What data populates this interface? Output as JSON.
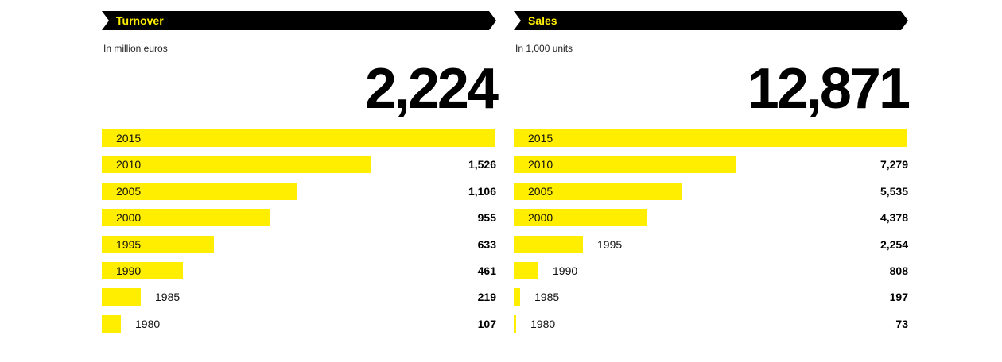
{
  "chart_data": [
    {
      "type": "bar",
      "title": "Turnover",
      "subtitle": "In million euros",
      "total": "2,224",
      "categories": [
        "2015",
        "2010",
        "2005",
        "2000",
        "1995",
        "1990",
        "1985",
        "1980"
      ],
      "values": [
        2224,
        1526,
        1106,
        955,
        633,
        461,
        219,
        107
      ],
      "value_labels": [
        "",
        "1,526",
        "1,106",
        "955",
        "633",
        "461",
        "219",
        "107"
      ],
      "xlim": [
        0,
        2224
      ],
      "orientation": "horizontal",
      "bar_color": "#ffee00",
      "grid": false
    },
    {
      "type": "bar",
      "title": "Sales",
      "subtitle": "In 1,000 units",
      "total": "12,871",
      "categories": [
        "2015",
        "2010",
        "2005",
        "2000",
        "1995",
        "1990",
        "1985",
        "1980"
      ],
      "values": [
        12871,
        7279,
        5535,
        4378,
        2254,
        808,
        197,
        73
      ],
      "value_labels": [
        "",
        "7,279",
        "5,535",
        "4,378",
        "2,254",
        "808",
        "197",
        "73"
      ],
      "xlim": [
        0,
        12871
      ],
      "orientation": "horizontal",
      "bar_color": "#ffee00",
      "grid": false
    }
  ],
  "colors": {
    "header_bg": "#000000",
    "header_text": "#ffee00",
    "bar": "#ffee00"
  }
}
